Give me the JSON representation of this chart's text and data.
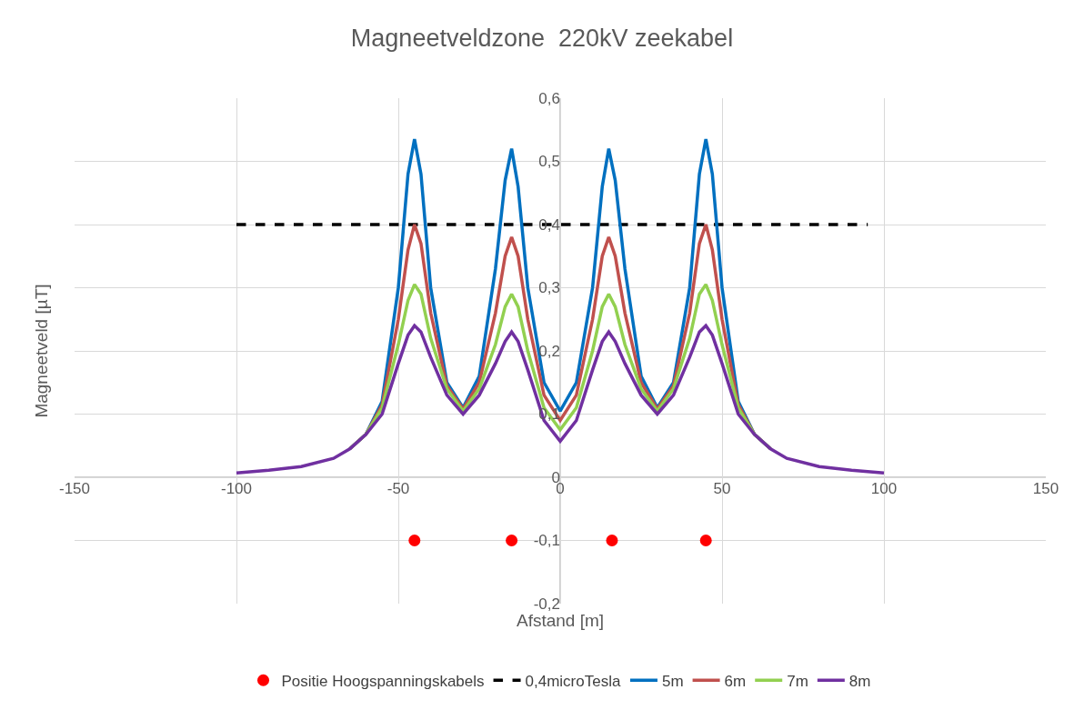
{
  "chart_data": {
    "type": "line",
    "title": "Magneetveldzone  220kV zeekabel",
    "xlabel": "Afstand [m]",
    "ylabel": "Magneetveld [µT]",
    "xlim": [
      -150,
      150
    ],
    "xticks": [
      -150,
      -100,
      -50,
      0,
      50,
      100,
      150
    ],
    "ylim": [
      -0.2,
      0.6
    ],
    "yticks": [
      {
        "value": -0.2,
        "label": "-0,2"
      },
      {
        "value": -0.1,
        "label": "-0,1"
      },
      0,
      {
        "value": 0.1,
        "label": "0,1"
      },
      {
        "value": 0.2,
        "label": "0,2"
      },
      {
        "value": 0.3,
        "label": "0,3"
      },
      {
        "value": 0.4,
        "label": "0,4"
      },
      {
        "value": 0.5,
        "label": "0,5"
      },
      {
        "value": 0.6,
        "label": "0,6"
      }
    ],
    "grid": true,
    "legend": "bottom",
    "x": [
      -100,
      -90,
      -80,
      -70,
      -65,
      -60,
      -55,
      -50,
      -47,
      -45,
      -43,
      -40,
      -35,
      -30,
      -25,
      -20,
      -17,
      -15,
      -13,
      -10,
      -5,
      0,
      5,
      10,
      13,
      15,
      17,
      20,
      25,
      30,
      35,
      40,
      43,
      45,
      47,
      50,
      55,
      60,
      65,
      70,
      80,
      90,
      100
    ],
    "series": [
      {
        "name": "Positie Hoogspanningskabels",
        "type": "scatter",
        "marker": "circle",
        "color": "#ff0000",
        "x": [
          -45,
          -15,
          16,
          45
        ],
        "values": [
          -0.1,
          -0.1,
          -0.1,
          -0.1
        ]
      },
      {
        "name": "0,4microTesla",
        "line_style": "dashed",
        "color": "#000000",
        "x": [
          -100,
          95
        ],
        "values": [
          0.4,
          0.4
        ]
      },
      {
        "name": "5m",
        "line_style": "solid",
        "color": "#0070c0",
        "values": [
          null,
          null,
          null,
          null,
          0.045,
          0.068,
          0.12,
          0.3,
          0.48,
          0.535,
          0.48,
          0.3,
          0.15,
          0.11,
          0.16,
          0.33,
          0.47,
          0.52,
          0.46,
          0.3,
          0.15,
          0.105,
          0.15,
          0.3,
          0.46,
          0.52,
          0.47,
          0.33,
          0.16,
          0.11,
          0.15,
          0.3,
          0.48,
          0.535,
          0.48,
          0.3,
          0.12,
          0.068,
          0.045,
          null,
          null,
          null,
          null
        ]
      },
      {
        "name": "6m",
        "line_style": "solid",
        "color": "#c0504d",
        "values": [
          null,
          null,
          null,
          null,
          0.045,
          0.068,
          0.115,
          0.25,
          0.36,
          0.4,
          0.37,
          0.26,
          0.145,
          0.108,
          0.15,
          0.26,
          0.35,
          0.38,
          0.35,
          0.25,
          0.13,
          0.09,
          0.13,
          0.25,
          0.35,
          0.38,
          0.35,
          0.26,
          0.15,
          0.108,
          0.145,
          0.26,
          0.37,
          0.4,
          0.36,
          0.25,
          0.115,
          0.068,
          0.045,
          null,
          null,
          null,
          null
        ]
      },
      {
        "name": "7m",
        "line_style": "solid",
        "color": "#92d050",
        "values": [
          null,
          null,
          null,
          null,
          0.045,
          0.068,
          0.11,
          0.21,
          0.28,
          0.305,
          0.29,
          0.22,
          0.14,
          0.105,
          0.14,
          0.21,
          0.27,
          0.29,
          0.27,
          0.2,
          0.11,
          0.075,
          0.11,
          0.2,
          0.27,
          0.29,
          0.27,
          0.21,
          0.14,
          0.105,
          0.14,
          0.22,
          0.29,
          0.305,
          0.28,
          0.21,
          0.11,
          0.068,
          0.045,
          null,
          null,
          null,
          null
        ]
      },
      {
        "name": "8m",
        "line_style": "solid",
        "color": "#7030a0",
        "values": [
          0.007,
          0.011,
          0.017,
          0.03,
          0.045,
          0.068,
          0.1,
          0.18,
          0.225,
          0.24,
          0.23,
          0.19,
          0.13,
          0.1,
          0.13,
          0.18,
          0.215,
          0.23,
          0.215,
          0.17,
          0.09,
          0.057,
          0.09,
          0.17,
          0.215,
          0.23,
          0.215,
          0.18,
          0.13,
          0.1,
          0.13,
          0.19,
          0.23,
          0.24,
          0.225,
          0.18,
          0.1,
          0.068,
          0.045,
          0.03,
          0.017,
          0.011,
          0.007
        ]
      }
    ]
  }
}
